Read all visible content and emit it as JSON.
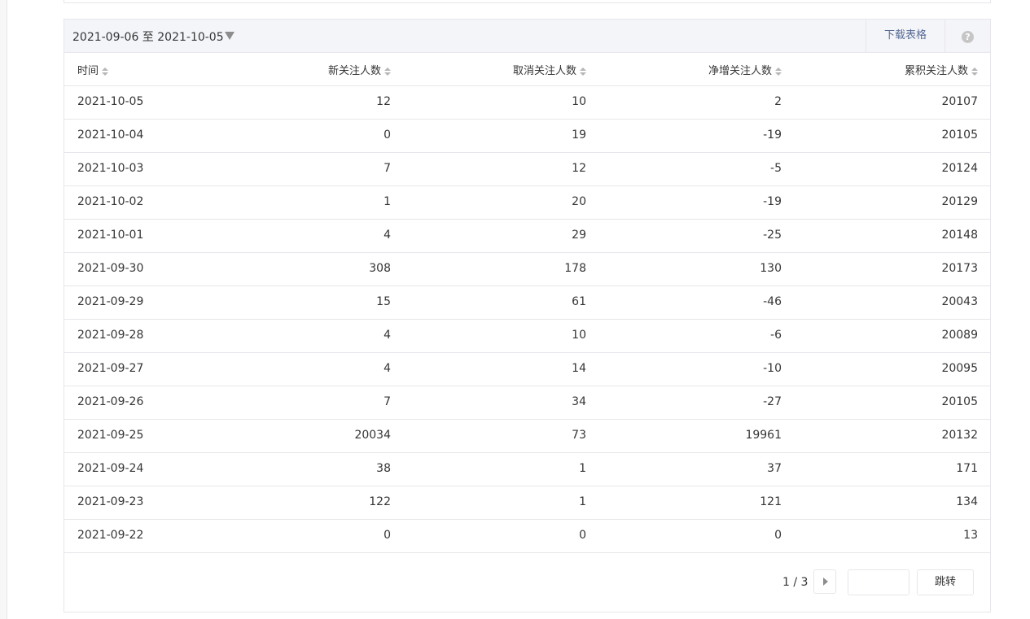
{
  "header": {
    "date_range": "2021-09-06 至 2021-10-05",
    "download": "下载表格",
    "help": "?"
  },
  "table": {
    "columns": [
      "时间",
      "新关注人数",
      "取消关注人数",
      "净增关注人数",
      "累积关注人数"
    ],
    "rows": [
      [
        "2021-10-05",
        12,
        10,
        2,
        20107
      ],
      [
        "2021-10-04",
        0,
        19,
        -19,
        20105
      ],
      [
        "2021-10-03",
        7,
        12,
        -5,
        20124
      ],
      [
        "2021-10-02",
        1,
        20,
        -19,
        20129
      ],
      [
        "2021-10-01",
        4,
        29,
        -25,
        20148
      ],
      [
        "2021-09-30",
        308,
        178,
        130,
        20173
      ],
      [
        "2021-09-29",
        15,
        61,
        -46,
        20043
      ],
      [
        "2021-09-28",
        4,
        10,
        -6,
        20089
      ],
      [
        "2021-09-27",
        4,
        14,
        -10,
        20095
      ],
      [
        "2021-09-26",
        7,
        34,
        -27,
        20105
      ],
      [
        "2021-09-25",
        20034,
        73,
        19961,
        20132
      ],
      [
        "2021-09-24",
        38,
        1,
        37,
        171
      ],
      [
        "2021-09-23",
        122,
        1,
        121,
        134
      ],
      [
        "2021-09-22",
        0,
        0,
        0,
        13
      ]
    ]
  },
  "pagination": {
    "page": "1 / 3",
    "jump": "跳转"
  }
}
